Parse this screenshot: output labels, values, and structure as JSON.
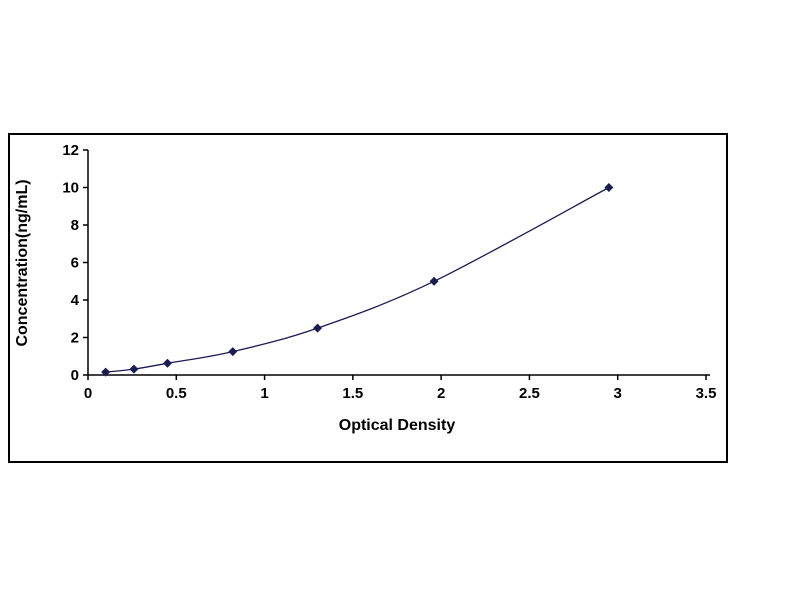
{
  "figure": {
    "description": "ELISA standard curve plot"
  },
  "chart_data": {
    "type": "line",
    "title": "",
    "xlabel": "Optical Density",
    "ylabel": "Concentration(ng/mL)",
    "x": [
      0.1,
      0.26,
      0.45,
      0.82,
      1.3,
      1.96,
      2.95
    ],
    "y": [
      0.156,
      0.312,
      0.625,
      1.25,
      2.5,
      5.0,
      10.0
    ],
    "xlim": [
      0,
      3.5
    ],
    "ylim": [
      0,
      12
    ],
    "xticks": [
      0,
      0.5,
      1,
      1.5,
      2,
      2.5,
      3,
      3.5
    ],
    "yticks": [
      0,
      2,
      4,
      6,
      8,
      10,
      12
    ],
    "grid": false,
    "legend": "none",
    "line_color": "#1b1b55",
    "marker": "diamond",
    "marker_color": "#1b1b55",
    "axis_color": "#000000",
    "frame_color": "#000000",
    "background": "#ffffff"
  }
}
